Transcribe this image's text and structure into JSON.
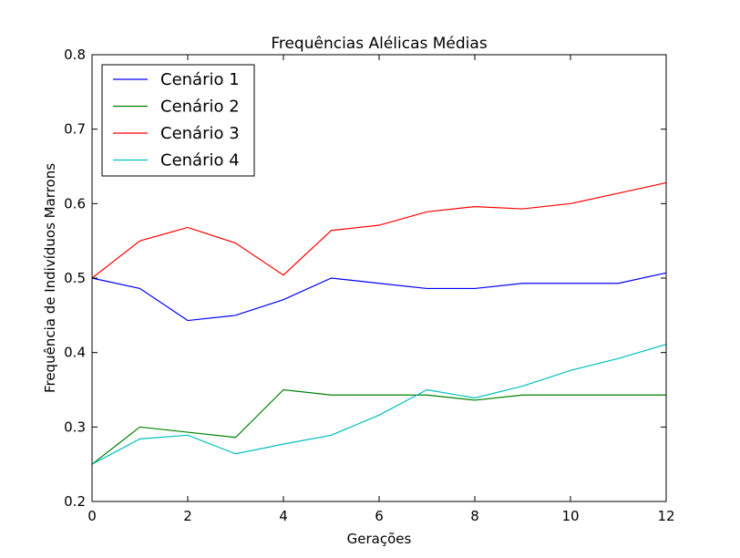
{
  "chart_data": {
    "type": "line",
    "title": "Frequências Alélicas Médias",
    "xlabel": "Gerações",
    "ylabel": "Frequência de Indivíduos Marrons",
    "xlim": [
      0,
      12
    ],
    "ylim": [
      0.2,
      0.8
    ],
    "x_ticks": [
      "0",
      "2",
      "4",
      "6",
      "8",
      "10",
      "12"
    ],
    "y_ticks": [
      "0.2",
      "0.3",
      "0.4",
      "0.5",
      "0.6",
      "0.7",
      "0.8"
    ],
    "grid": false,
    "legend_position": "top-left",
    "x": [
      0,
      1,
      2,
      3,
      4,
      5,
      6,
      7,
      8,
      9,
      10,
      11,
      12
    ],
    "series": [
      {
        "name": "Cenário 1",
        "color": "#0000ff",
        "values": [
          0.5,
          0.486,
          0.443,
          0.45,
          0.471,
          0.5,
          0.493,
          0.486,
          0.486,
          0.493,
          0.493,
          0.493,
          0.507
        ]
      },
      {
        "name": "Cenário 2",
        "color": "#008000",
        "values": [
          0.25,
          0.3,
          0.293,
          0.286,
          0.35,
          0.343,
          0.343,
          0.343,
          0.336,
          0.343,
          0.343,
          0.343,
          0.343
        ]
      },
      {
        "name": "Cenário 3",
        "color": "#ff0000",
        "values": [
          0.5,
          0.55,
          0.568,
          0.547,
          0.504,
          0.564,
          0.571,
          0.589,
          0.596,
          0.593,
          0.6,
          0.614,
          0.628
        ]
      },
      {
        "name": "Cenário 4",
        "color": "#00bfbf",
        "values": [
          0.25,
          0.284,
          0.289,
          0.264,
          0.277,
          0.289,
          0.316,
          0.35,
          0.339,
          0.355,
          0.376,
          0.392,
          0.411
        ]
      }
    ]
  }
}
